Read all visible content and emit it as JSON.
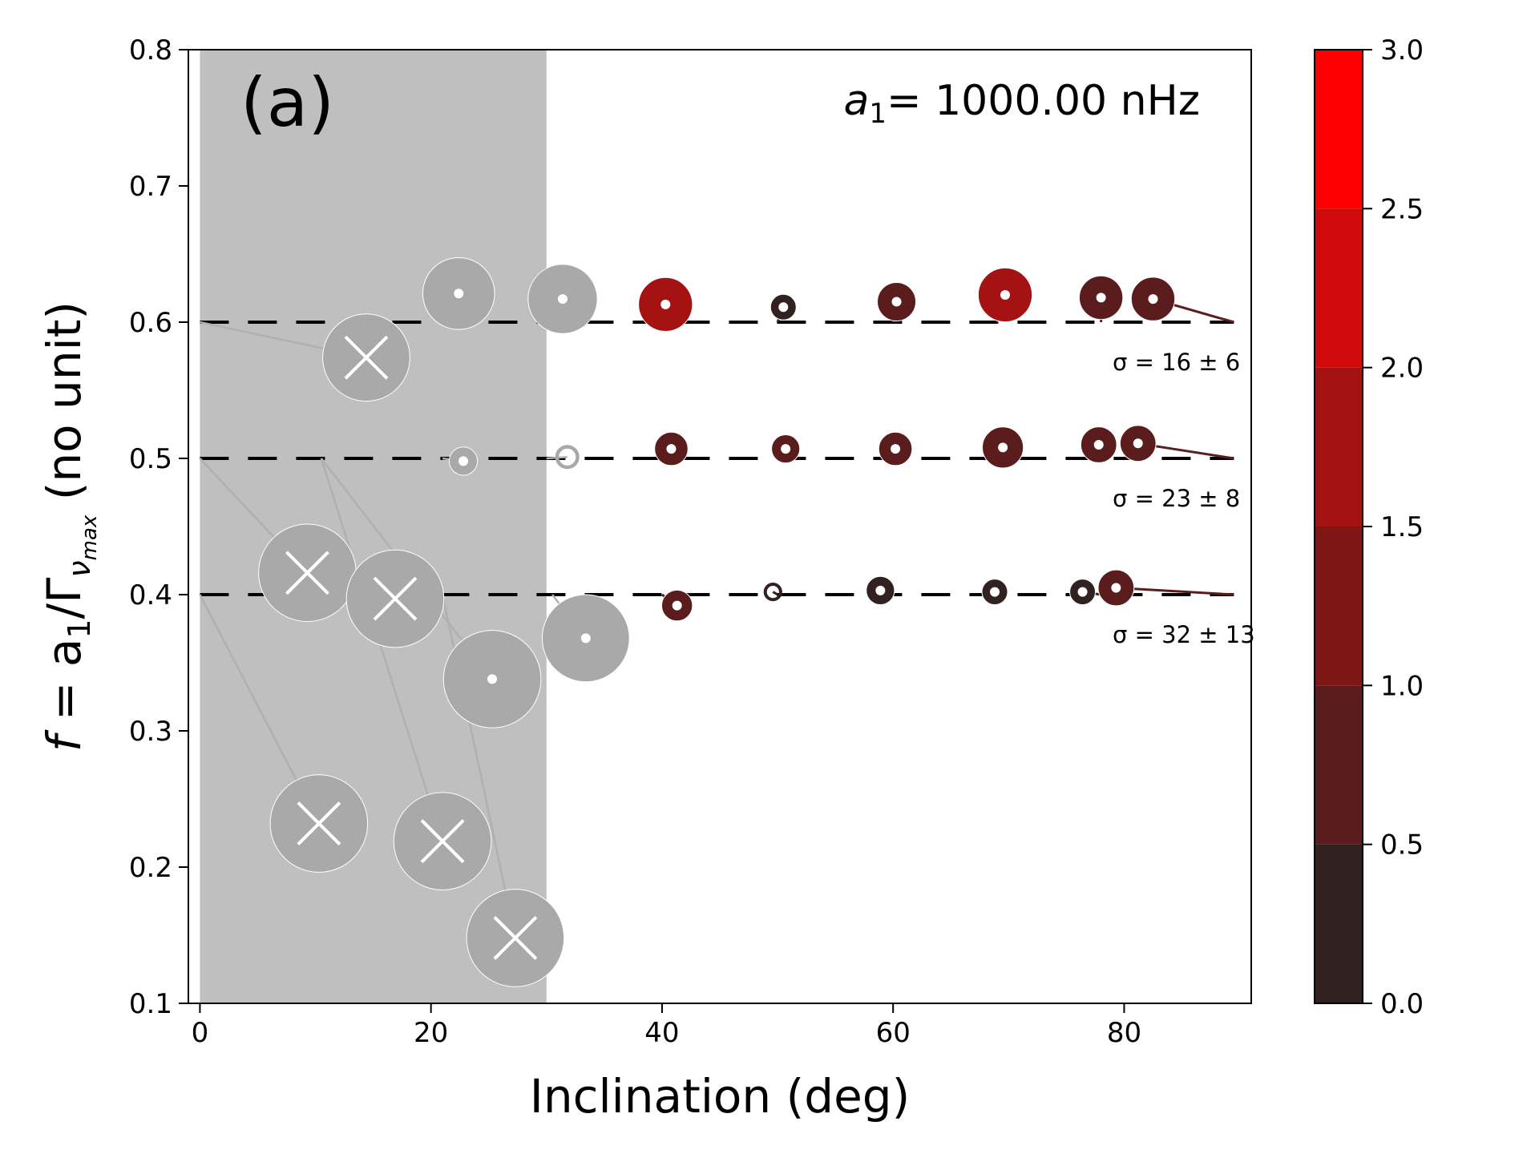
{
  "chart_data": {
    "type": "scatter",
    "panel_label": "(a)",
    "annotation": {
      "symbol": "a",
      "subscript": "1",
      "text": "= 1000.00 nHz"
    },
    "xlabel": "Inclination (deg)",
    "ylabel": {
      "prefix": "f",
      "eq": " = a",
      "sub1": "1",
      "slash": "/Γ",
      "sub2": "ν",
      "sub3": "max",
      "suffix": " (no unit)"
    },
    "xlim": [
      -1,
      91
    ],
    "ylim": [
      0.1,
      0.8
    ],
    "xticks": [
      0,
      20,
      40,
      60,
      80
    ],
    "xtick_labels": [
      "0",
      "20",
      "40",
      "60",
      "80"
    ],
    "yticks": [
      0.1,
      0.2,
      0.3,
      0.4,
      0.5,
      0.6,
      0.7,
      0.8
    ],
    "ytick_labels": [
      "0.1",
      "0.2",
      "0.3",
      "0.4",
      "0.5",
      "0.6",
      "0.7",
      "0.8"
    ],
    "shaded_region": {
      "x": [
        0,
        30
      ],
      "color": "#bfbfbf"
    },
    "reference_lines": [
      {
        "y": 0.6,
        "sigma_label": "σ = 16 ± 6"
      },
      {
        "y": 0.5,
        "sigma_label": "σ = 23 ± 8"
      },
      {
        "y": 0.4,
        "sigma_label": "σ = 32 ± 13"
      }
    ],
    "colorbar": {
      "ticks": [
        0.0,
        0.5,
        1.0,
        1.5,
        2.0,
        2.5,
        3.0
      ],
      "tick_labels": [
        "0.0",
        "0.5",
        "1.0",
        "1.5",
        "2.0",
        "2.5",
        "3.0"
      ],
      "colors": [
        "#322121",
        "#5a1c1c",
        "#7f1616",
        "#a51212",
        "#d00a0a",
        "#ff0000"
      ]
    },
    "colors": {
      "rejected": "#a9a9a9",
      "guide": "#b0b0b0"
    },
    "points": [
      {
        "true_i": 0,
        "true_f": 0.6,
        "i": 14.4,
        "f": 0.574,
        "size": 3.4,
        "rejected": true,
        "c": -1
      },
      {
        "true_i": 22,
        "true_f": 0.6,
        "i": 22.4,
        "f": 0.621,
        "size": 2.8,
        "rejected": false,
        "c": -1
      },
      {
        "true_i": 31,
        "true_f": 0.6,
        "i": 31.4,
        "f": 0.617,
        "size": 2.7,
        "rejected": false,
        "c": -1
      },
      {
        "true_i": 40,
        "true_f": 0.6,
        "i": 40.3,
        "f": 0.613,
        "size": 2.1,
        "rejected": false,
        "c": 1.6
      },
      {
        "true_i": 50,
        "true_f": 0.6,
        "i": 50.5,
        "f": 0.611,
        "size": 1.0,
        "rejected": false,
        "c": 0.3
      },
      {
        "true_i": 60,
        "true_f": 0.6,
        "i": 60.3,
        "f": 0.615,
        "size": 1.5,
        "rejected": false,
        "c": 0.9
      },
      {
        "true_i": 69,
        "true_f": 0.6,
        "i": 69.7,
        "f": 0.62,
        "size": 2.1,
        "rejected": false,
        "c": 1.7
      },
      {
        "true_i": 78,
        "true_f": 0.6,
        "i": 78.0,
        "f": 0.618,
        "size": 1.7,
        "rejected": false,
        "c": 0.9
      },
      {
        "true_i": 89.5,
        "true_f": 0.6,
        "i": 82.5,
        "f": 0.617,
        "size": 1.7,
        "rejected": false,
        "c": 0.8
      },
      {
        "true_i": 0,
        "true_f": 0.5,
        "i": 9.3,
        "f": 0.416,
        "size": 3.8,
        "rejected": true,
        "c": -1
      },
      {
        "true_i": 10.5,
        "true_f": 0.5,
        "i": 25.3,
        "f": 0.338,
        "size": 3.8,
        "rejected": false,
        "c": -1
      },
      {
        "true_i": 21,
        "true_f": 0.5,
        "i": 22.8,
        "f": 0.498,
        "size": 1.1,
        "rejected": false,
        "c": -1
      },
      {
        "true_i": 30,
        "true_f": 0.5,
        "i": 31.8,
        "f": 0.501,
        "size": 0.8,
        "rejected": false,
        "c": -1
      },
      {
        "true_i": 40,
        "true_f": 0.5,
        "i": 40.8,
        "f": 0.507,
        "size": 1.3,
        "rejected": false,
        "c": 0.8
      },
      {
        "true_i": 50,
        "true_f": 0.5,
        "i": 50.7,
        "f": 0.507,
        "size": 1.1,
        "rejected": false,
        "c": 0.5
      },
      {
        "true_i": 60,
        "true_f": 0.5,
        "i": 60.2,
        "f": 0.507,
        "size": 1.3,
        "rejected": false,
        "c": 0.8
      },
      {
        "true_i": 69,
        "true_f": 0.5,
        "i": 69.5,
        "f": 0.508,
        "size": 1.6,
        "rejected": false,
        "c": 0.9
      },
      {
        "true_i": 78,
        "true_f": 0.5,
        "i": 77.8,
        "f": 0.51,
        "size": 1.4,
        "rejected": false,
        "c": 0.9
      },
      {
        "true_i": 89.5,
        "true_f": 0.5,
        "i": 81.2,
        "f": 0.511,
        "size": 1.4,
        "rejected": false,
        "c": 0.8
      },
      {
        "true_i": 0,
        "true_f": 0.4,
        "i": 10.3,
        "f": 0.232,
        "size": 3.8,
        "rejected": true,
        "c": -1
      },
      {
        "true_i": 10.5,
        "true_f": 0.4,
        "i": 16.9,
        "f": 0.397,
        "size": 3.8,
        "rejected": true,
        "c": -1
      },
      {
        "true_i": 10.5,
        "true_f": 0.5,
        "i": 21.0,
        "f": 0.219,
        "size": 3.8,
        "rejected": true,
        "c": -1
      },
      {
        "true_i": 21,
        "true_f": 0.4,
        "i": 27.3,
        "f": 0.148,
        "size": 3.8,
        "rejected": true,
        "c": -1
      },
      {
        "true_i": 30.5,
        "true_f": 0.4,
        "i": 33.4,
        "f": 0.368,
        "size": 3.4,
        "rejected": false,
        "c": -1
      },
      {
        "true_i": 40,
        "true_f": 0.4,
        "i": 41.3,
        "f": 0.392,
        "size": 1.2,
        "rejected": false,
        "c": 0.9
      },
      {
        "true_i": 50,
        "true_f": 0.4,
        "i": 49.6,
        "f": 0.402,
        "size": 0.6,
        "rejected": false,
        "c": 0.4
      },
      {
        "true_i": 60,
        "true_f": 0.4,
        "i": 58.9,
        "f": 0.403,
        "size": 1.1,
        "rejected": false,
        "c": 0.4
      },
      {
        "true_i": 69,
        "true_f": 0.4,
        "i": 68.8,
        "f": 0.402,
        "size": 1.0,
        "rejected": false,
        "c": 0.3
      },
      {
        "true_i": 78,
        "true_f": 0.4,
        "i": 76.4,
        "f": 0.402,
        "size": 1.0,
        "rejected": false,
        "c": 0.3
      },
      {
        "true_i": 89.5,
        "true_f": 0.4,
        "i": 79.3,
        "f": 0.405,
        "size": 1.4,
        "rejected": false,
        "c": 0.8
      }
    ]
  }
}
